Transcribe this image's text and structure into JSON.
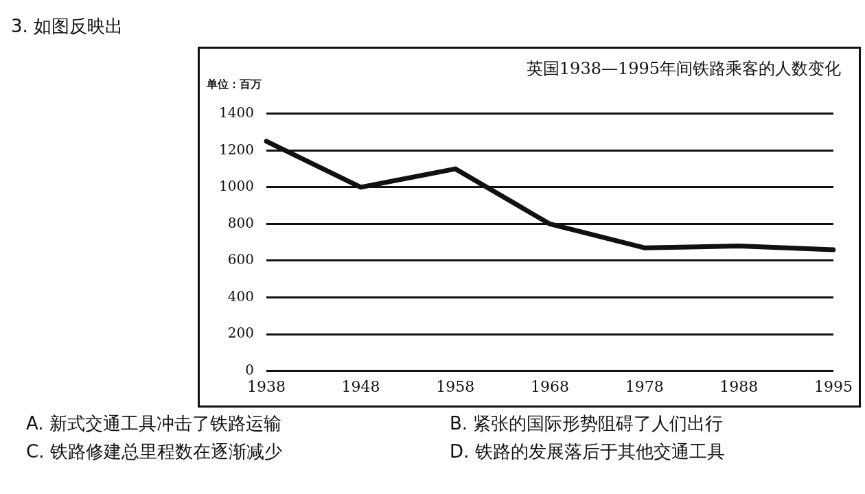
{
  "chart_data": {
    "type": "line",
    "title": "英国1938—1995年间铁路乘客的人数变化",
    "ylabel": "单位：百万",
    "categories": [
      "1938",
      "1948",
      "1958",
      "1968",
      "1978",
      "1988",
      "1995"
    ],
    "series": [
      {
        "color": "#111111",
        "values": [
          1250,
          1000,
          1100,
          800,
          670,
          680,
          660
        ]
      }
    ],
    "ylim": [
      0,
      1400
    ],
    "yticks": [
      0,
      200,
      400,
      600,
      800,
      1000,
      1200,
      1400
    ],
    "grid": "y",
    "legend": false,
    "marker": "none",
    "line_style": "solid",
    "annotations": [
      "3. 如图反映出",
      "A. 新式交通工具冲击了铁路运输",
      "B. 紧张的国际形势阻碍了人们出行",
      "C. 铁路修建总里程数在逐渐减少",
      "D. 铁路的发展落后于其他交通工具"
    ]
  }
}
